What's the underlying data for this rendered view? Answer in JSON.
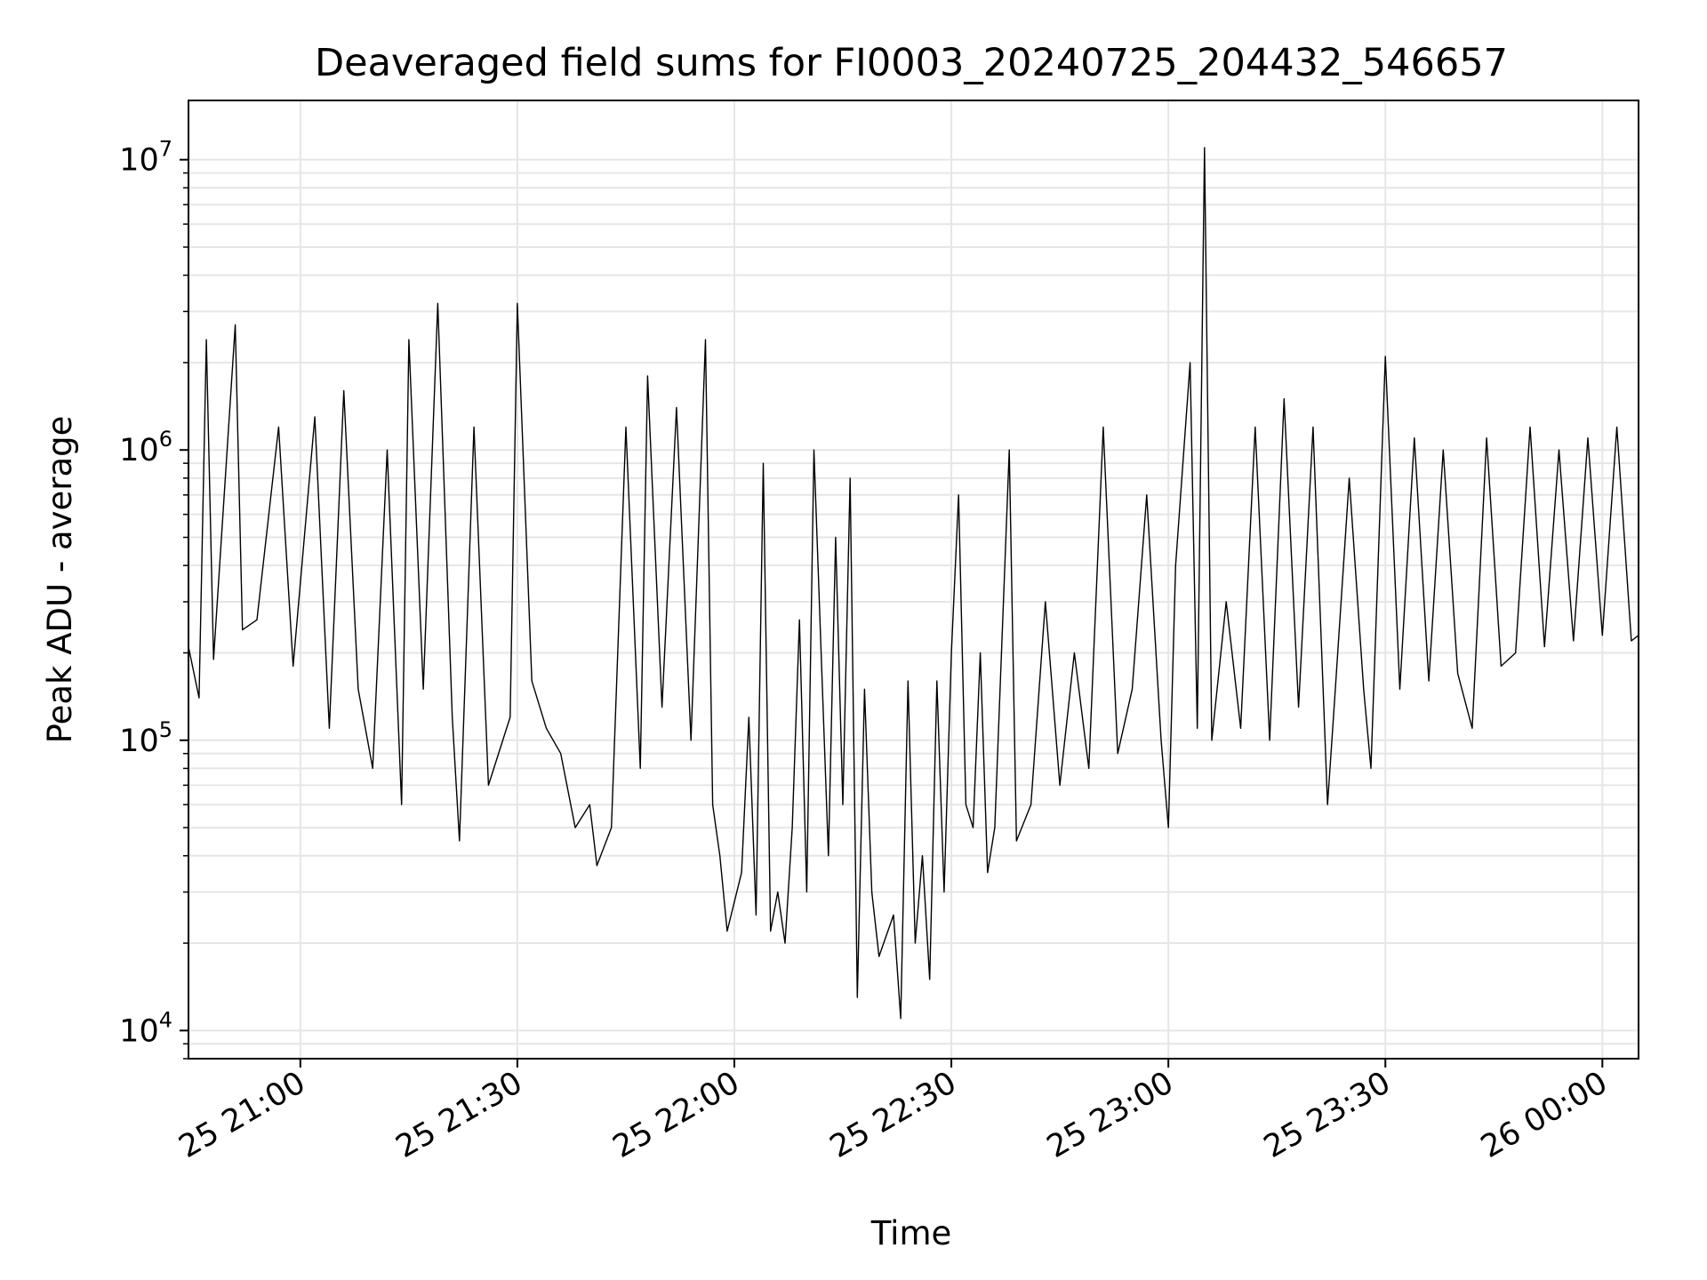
{
  "chart_data": {
    "type": "line",
    "title": "Deaveraged field sums for FI0003_20240725_204432_546657",
    "xlabel": "Time",
    "ylabel": "Peak ADU - average",
    "yscale": "log",
    "xlim": [
      "2024-07-25 20:44:32",
      "2024-07-26 00:05:00"
    ],
    "ylim": [
      8000,
      16000000
    ],
    "grid": true,
    "line_color": "#000000",
    "x_ticks": [
      {
        "label": "25 21:00",
        "time": "2024-07-25 21:00"
      },
      {
        "label": "25 21:30",
        "time": "2024-07-25 21:30"
      },
      {
        "label": "25 22:00",
        "time": "2024-07-25 22:00"
      },
      {
        "label": "25 22:30",
        "time": "2024-07-25 22:30"
      },
      {
        "label": "25 23:00",
        "time": "2024-07-25 23:00"
      },
      {
        "label": "25 23:30",
        "time": "2024-07-25 23:30"
      },
      {
        "label": "26 00:00",
        "time": "2024-07-26 00:00"
      }
    ],
    "y_ticks": [
      {
        "base": "10",
        "exp": "4",
        "value": 10000
      },
      {
        "base": "10",
        "exp": "5",
        "value": 100000
      },
      {
        "base": "10",
        "exp": "6",
        "value": 1000000
      },
      {
        "base": "10",
        "exp": "7",
        "value": 10000000
      }
    ],
    "series": [
      {
        "points": [
          [
            "2024-07-25 20:44:32",
            210000
          ],
          [
            "2024-07-25 20:46:00",
            140000
          ],
          [
            "2024-07-25 20:47:00",
            2400000
          ],
          [
            "2024-07-25 20:48:00",
            190000
          ],
          [
            "2024-07-25 20:51:00",
            2700000
          ],
          [
            "2024-07-25 20:52:00",
            240000
          ],
          [
            "2024-07-25 20:54:00",
            260000
          ],
          [
            "2024-07-25 20:57:00",
            1200000
          ],
          [
            "2024-07-25 20:59:00",
            180000
          ],
          [
            "2024-07-25 21:02:00",
            1300000
          ],
          [
            "2024-07-25 21:04:00",
            110000
          ],
          [
            "2024-07-25 21:06:00",
            1600000
          ],
          [
            "2024-07-25 21:08:00",
            150000
          ],
          [
            "2024-07-25 21:10:00",
            80000
          ],
          [
            "2024-07-25 21:12:00",
            1000000
          ],
          [
            "2024-07-25 21:14:00",
            60000
          ],
          [
            "2024-07-25 21:15:00",
            2400000
          ],
          [
            "2024-07-25 21:17:00",
            150000
          ],
          [
            "2024-07-25 21:19:00",
            3200000
          ],
          [
            "2024-07-25 21:21:00",
            120000
          ],
          [
            "2024-07-25 21:22:00",
            45000
          ],
          [
            "2024-07-25 21:24:00",
            1200000
          ],
          [
            "2024-07-25 21:26:00",
            70000
          ],
          [
            "2024-07-25 21:29:00",
            120000
          ],
          [
            "2024-07-25 21:30:00",
            3200000
          ],
          [
            "2024-07-25 21:32:00",
            160000
          ],
          [
            "2024-07-25 21:34:00",
            110000
          ],
          [
            "2024-07-25 21:36:00",
            90000
          ],
          [
            "2024-07-25 21:38:00",
            50000
          ],
          [
            "2024-07-25 21:40:00",
            60000
          ],
          [
            "2024-07-25 21:41:00",
            37000
          ],
          [
            "2024-07-25 21:43:00",
            50000
          ],
          [
            "2024-07-25 21:45:00",
            1200000
          ],
          [
            "2024-07-25 21:47:00",
            80000
          ],
          [
            "2024-07-25 21:48:00",
            1800000
          ],
          [
            "2024-07-25 21:50:00",
            130000
          ],
          [
            "2024-07-25 21:52:00",
            1400000
          ],
          [
            "2024-07-25 21:54:00",
            100000
          ],
          [
            "2024-07-25 21:56:00",
            2400000
          ],
          [
            "2024-07-25 21:57:00",
            60000
          ],
          [
            "2024-07-25 21:58:00",
            40000
          ],
          [
            "2024-07-25 21:59:00",
            22000
          ],
          [
            "2024-07-25 22:01:00",
            35000
          ],
          [
            "2024-07-25 22:02:00",
            120000
          ],
          [
            "2024-07-25 22:03:00",
            25000
          ],
          [
            "2024-07-25 22:04:00",
            900000
          ],
          [
            "2024-07-25 22:05:00",
            22000
          ],
          [
            "2024-07-25 22:06:00",
            30000
          ],
          [
            "2024-07-25 22:07:00",
            20000
          ],
          [
            "2024-07-25 22:08:00",
            50000
          ],
          [
            "2024-07-25 22:09:00",
            260000
          ],
          [
            "2024-07-25 22:10:00",
            30000
          ],
          [
            "2024-07-25 22:11:00",
            1000000
          ],
          [
            "2024-07-25 22:12:00",
            200000
          ],
          [
            "2024-07-25 22:13:00",
            40000
          ],
          [
            "2024-07-25 22:14:00",
            500000
          ],
          [
            "2024-07-25 22:15:00",
            60000
          ],
          [
            "2024-07-25 22:16:00",
            800000
          ],
          [
            "2024-07-25 22:17:00",
            13000
          ],
          [
            "2024-07-25 22:18:00",
            150000
          ],
          [
            "2024-07-25 22:19:00",
            30000
          ],
          [
            "2024-07-25 22:20:00",
            18000
          ],
          [
            "2024-07-25 22:22:00",
            25000
          ],
          [
            "2024-07-25 22:23:00",
            11000
          ],
          [
            "2024-07-25 22:24:00",
            160000
          ],
          [
            "2024-07-25 22:25:00",
            20000
          ],
          [
            "2024-07-25 22:26:00",
            40000
          ],
          [
            "2024-07-25 22:27:00",
            15000
          ],
          [
            "2024-07-25 22:28:00",
            160000
          ],
          [
            "2024-07-25 22:29:00",
            30000
          ],
          [
            "2024-07-25 22:30:00",
            200000
          ],
          [
            "2024-07-25 22:31:00",
            700000
          ],
          [
            "2024-07-25 22:32:00",
            60000
          ],
          [
            "2024-07-25 22:33:00",
            50000
          ],
          [
            "2024-07-25 22:34:00",
            200000
          ],
          [
            "2024-07-25 22:35:00",
            35000
          ],
          [
            "2024-07-25 22:36:00",
            50000
          ],
          [
            "2024-07-25 22:38:00",
            1000000
          ],
          [
            "2024-07-25 22:39:00",
            45000
          ],
          [
            "2024-07-25 22:41:00",
            60000
          ],
          [
            "2024-07-25 22:43:00",
            300000
          ],
          [
            "2024-07-25 22:45:00",
            70000
          ],
          [
            "2024-07-25 22:47:00",
            200000
          ],
          [
            "2024-07-25 22:49:00",
            80000
          ],
          [
            "2024-07-25 22:51:00",
            1200000
          ],
          [
            "2024-07-25 22:53:00",
            90000
          ],
          [
            "2024-07-25 22:55:00",
            150000
          ],
          [
            "2024-07-25 22:57:00",
            700000
          ],
          [
            "2024-07-25 22:59:00",
            100000
          ],
          [
            "2024-07-25 23:00:00",
            50000
          ],
          [
            "2024-07-25 23:01:00",
            400000
          ],
          [
            "2024-07-25 23:03:00",
            2000000
          ],
          [
            "2024-07-25 23:04:00",
            110000
          ],
          [
            "2024-07-25 23:05:00",
            11000000
          ],
          [
            "2024-07-25 23:06:00",
            100000
          ],
          [
            "2024-07-25 23:08:00",
            300000
          ],
          [
            "2024-07-25 23:10:00",
            110000
          ],
          [
            "2024-07-25 23:12:00",
            1200000
          ],
          [
            "2024-07-25 23:14:00",
            100000
          ],
          [
            "2024-07-25 23:16:00",
            1500000
          ],
          [
            "2024-07-25 23:18:00",
            130000
          ],
          [
            "2024-07-25 23:20:00",
            1200000
          ],
          [
            "2024-07-25 23:22:00",
            60000
          ],
          [
            "2024-07-25 23:23:00",
            140000
          ],
          [
            "2024-07-25 23:25:00",
            800000
          ],
          [
            "2024-07-25 23:27:00",
            150000
          ],
          [
            "2024-07-25 23:28:00",
            80000
          ],
          [
            "2024-07-25 23:30:00",
            2100000
          ],
          [
            "2024-07-25 23:32:00",
            150000
          ],
          [
            "2024-07-25 23:34:00",
            1100000
          ],
          [
            "2024-07-25 23:36:00",
            160000
          ],
          [
            "2024-07-25 23:38:00",
            1000000
          ],
          [
            "2024-07-25 23:40:00",
            170000
          ],
          [
            "2024-07-25 23:42:00",
            110000
          ],
          [
            "2024-07-25 23:44:00",
            1100000
          ],
          [
            "2024-07-25 23:46:00",
            180000
          ],
          [
            "2024-07-25 23:48:00",
            200000
          ],
          [
            "2024-07-25 23:50:00",
            1200000
          ],
          [
            "2024-07-25 23:52:00",
            210000
          ],
          [
            "2024-07-25 23:54:00",
            1000000
          ],
          [
            "2024-07-25 23:56:00",
            220000
          ],
          [
            "2024-07-25 23:58:00",
            1100000
          ],
          [
            "2024-07-26 00:00:00",
            230000
          ],
          [
            "2024-07-26 00:02:00",
            1200000
          ],
          [
            "2024-07-26 00:04:00",
            220000
          ],
          [
            "2024-07-26 00:05:00",
            230000
          ]
        ]
      }
    ]
  }
}
